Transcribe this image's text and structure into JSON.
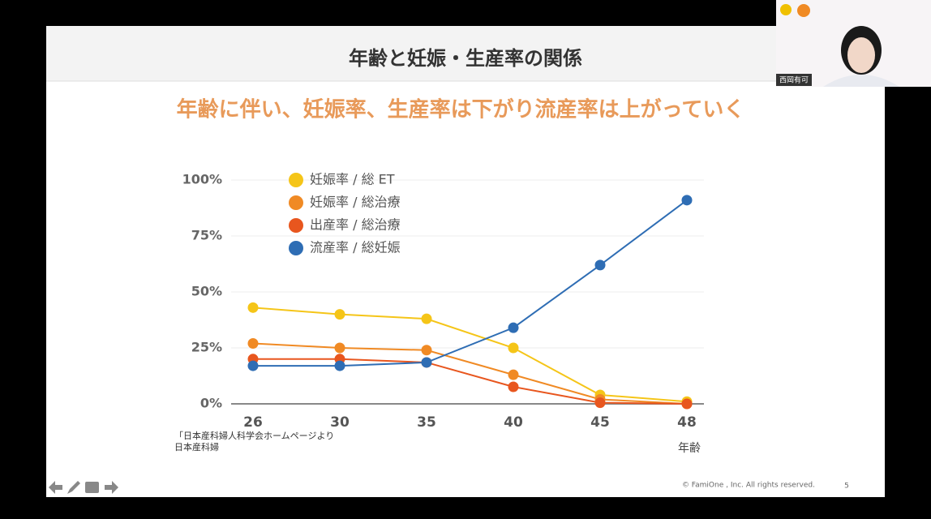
{
  "slide": {
    "title": "年齢と妊娠・生産率の関係",
    "subtitle": "年齢に伴い、妊娠率、生産率は下がり流産率は上がっていく",
    "source": [
      "「日本産科婦人科学会ホームページより",
      "日本産科婦"
    ],
    "copyright": "© FamiOne , Inc. All rights reserved.",
    "page": "5"
  },
  "video": {
    "name": "西岡有可"
  },
  "chart_data": {
    "type": "line",
    "xlabel": "年齢",
    "categories": [
      "26",
      "30",
      "35",
      "40",
      "45",
      "48"
    ],
    "ylim": [
      0,
      100
    ],
    "yticks": [
      {
        "value": 0,
        "label": "0%"
      },
      {
        "value": 25,
        "label": "25%"
      },
      {
        "value": 50,
        "label": "50%"
      },
      {
        "value": 75,
        "label": "75%"
      },
      {
        "value": 100,
        "label": "100%"
      }
    ],
    "grid": true,
    "legend": "upper left",
    "series": [
      {
        "name": "妊娠率 / 総 ET",
        "color": "#f5c518",
        "values": [
          43,
          40,
          38,
          25,
          4,
          1
        ]
      },
      {
        "name": "妊娠率 / 総治療",
        "color": "#f08a24",
        "values": [
          27,
          25,
          24,
          13,
          2,
          0
        ]
      },
      {
        "name": "出産率 / 総治療",
        "color": "#e8561e",
        "values": [
          20,
          20,
          18.5,
          7.6,
          0.5,
          0
        ]
      },
      {
        "name": "流産率 / 総妊娠",
        "color": "#2e6db4",
        "values": [
          17,
          17,
          18.5,
          34,
          62,
          91
        ]
      }
    ]
  }
}
